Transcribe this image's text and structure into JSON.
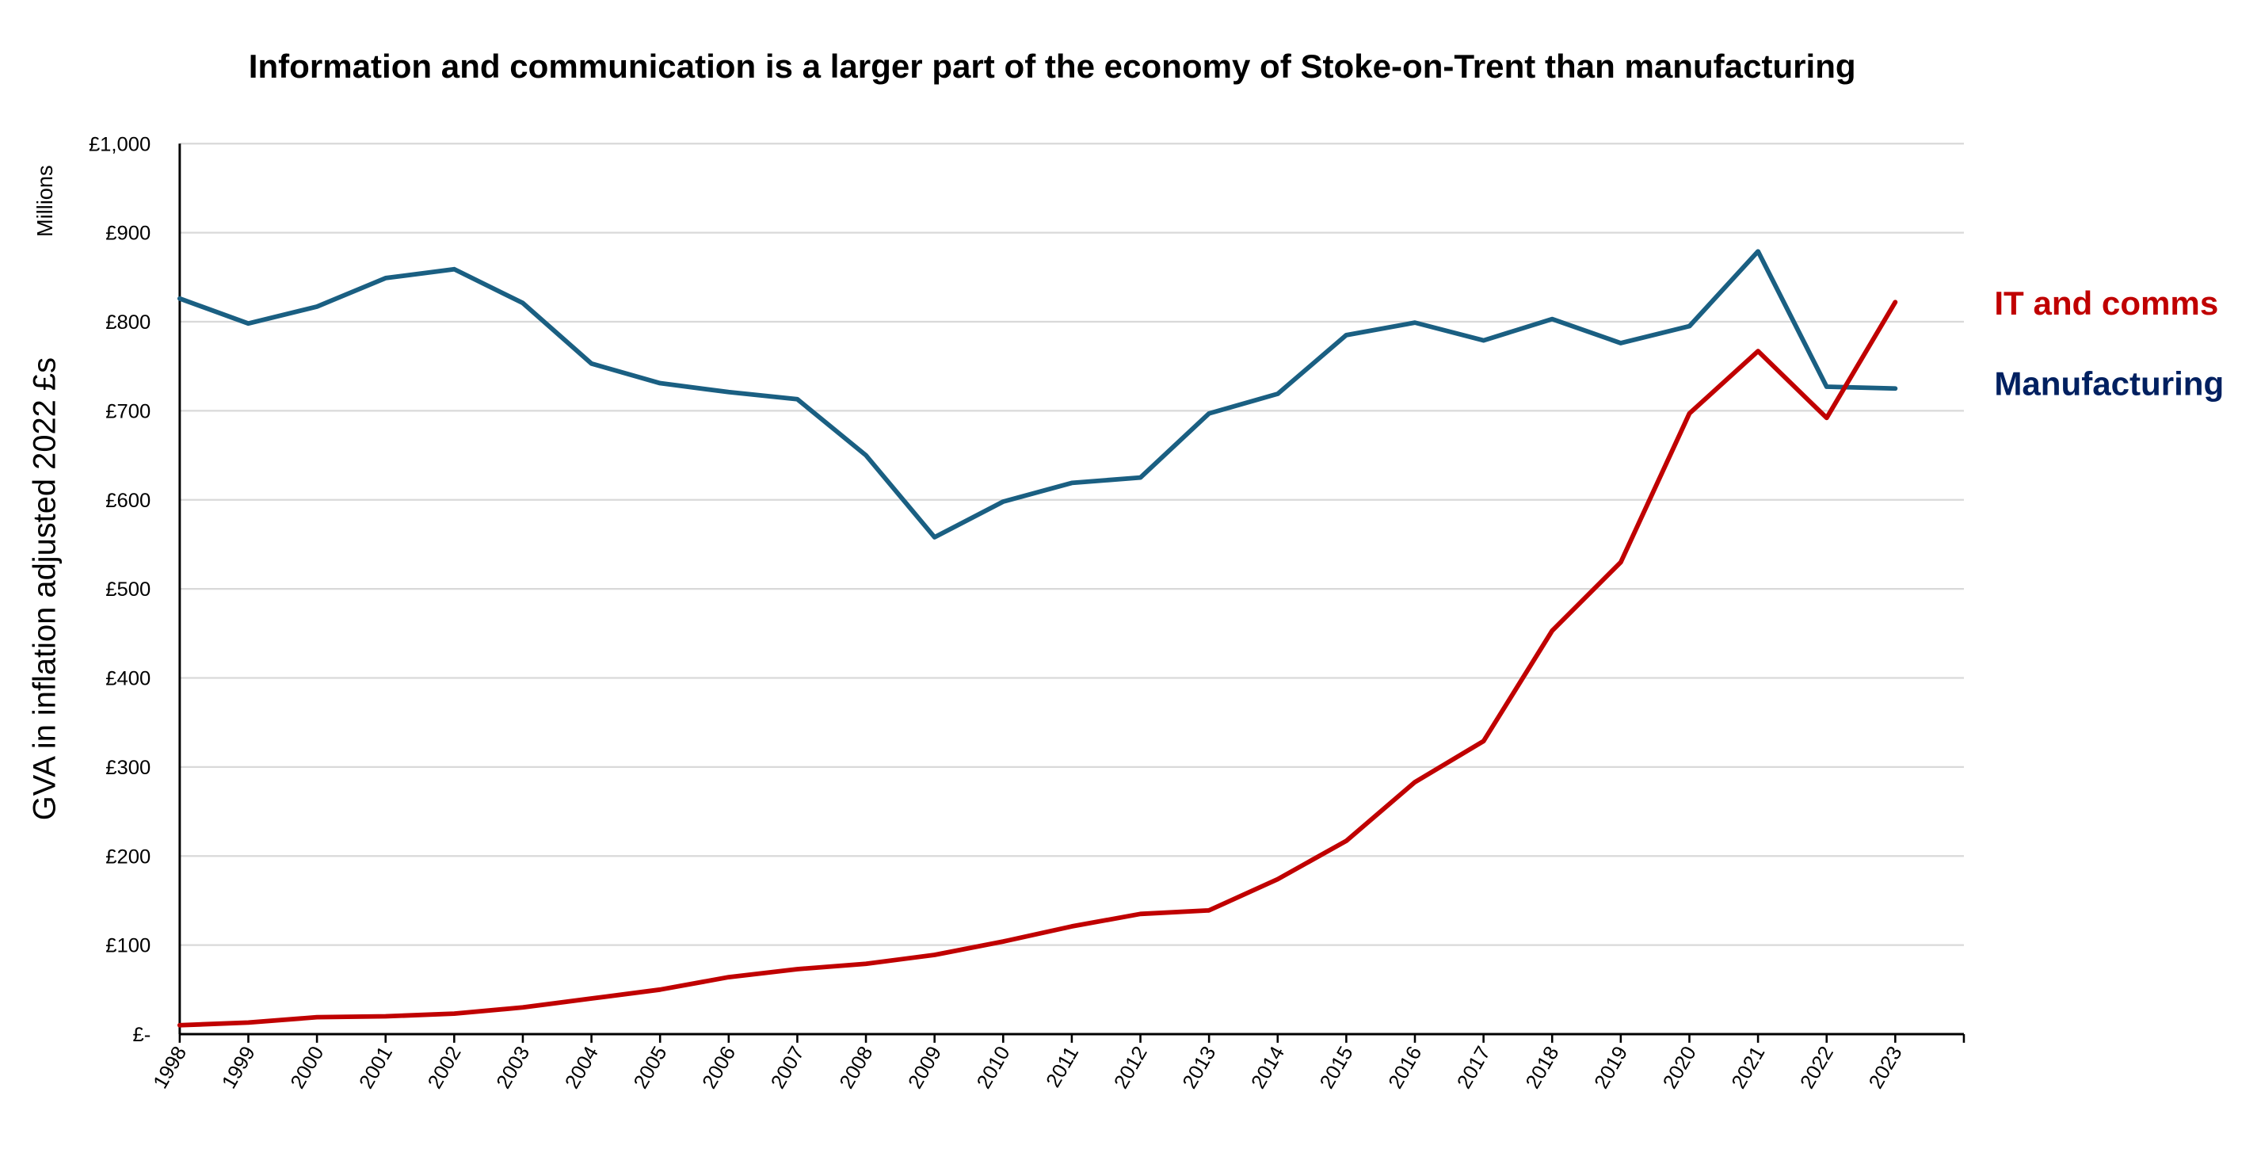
{
  "chart_data": {
    "type": "line",
    "title": "Information and communication is a larger part of the economy of Stoke-on-Trent than manufacturing",
    "xlabel": "",
    "ylabel": "GVA in  inflation adjusted 2022 £s",
    "yunits_label": "Millions",
    "x": [
      "1998",
      "1999",
      "2000",
      "2001",
      "2002",
      "2003",
      "2004",
      "2005",
      "2006",
      "2007",
      "2008",
      "2009",
      "2010",
      "2011",
      "2012",
      "2013",
      "2014",
      "2015",
      "2016",
      "2017",
      "2018",
      "2019",
      "2020",
      "2021",
      "2022",
      "2023"
    ],
    "ylim": [
      0,
      1000
    ],
    "yticks": [
      0,
      100,
      200,
      300,
      400,
      500,
      600,
      700,
      800,
      900,
      1000
    ],
    "ytick_labels": [
      "£-",
      "£100",
      "£200",
      "£300",
      "£400",
      "£500",
      "£600",
      "£700",
      "£800",
      "£900",
      "£1,000"
    ],
    "grid": true,
    "legend_placement": "right (direct labels)",
    "series": [
      {
        "name": "IT and comms",
        "color": "#C00000",
        "label_color": "#C00000",
        "values": [
          10,
          13,
          19,
          20,
          23,
          30,
          40,
          50,
          64,
          73,
          79,
          89,
          104,
          121,
          135,
          139,
          174,
          217,
          283,
          329,
          453,
          530,
          697,
          767,
          692,
          822
        ]
      },
      {
        "name": "Manufacturing",
        "color": "#1A5F82",
        "label_color": "#002060",
        "values": [
          826,
          798,
          817,
          849,
          859,
          821,
          753,
          731,
          721,
          713,
          650,
          558,
          598,
          619,
          625,
          697,
          719,
          785,
          799,
          779,
          803,
          776,
          795,
          879,
          727,
          725
        ]
      }
    ]
  },
  "colors": {
    "gridline": "#D9D9D9",
    "axis": "#000000",
    "background": "#FFFFFF"
  }
}
